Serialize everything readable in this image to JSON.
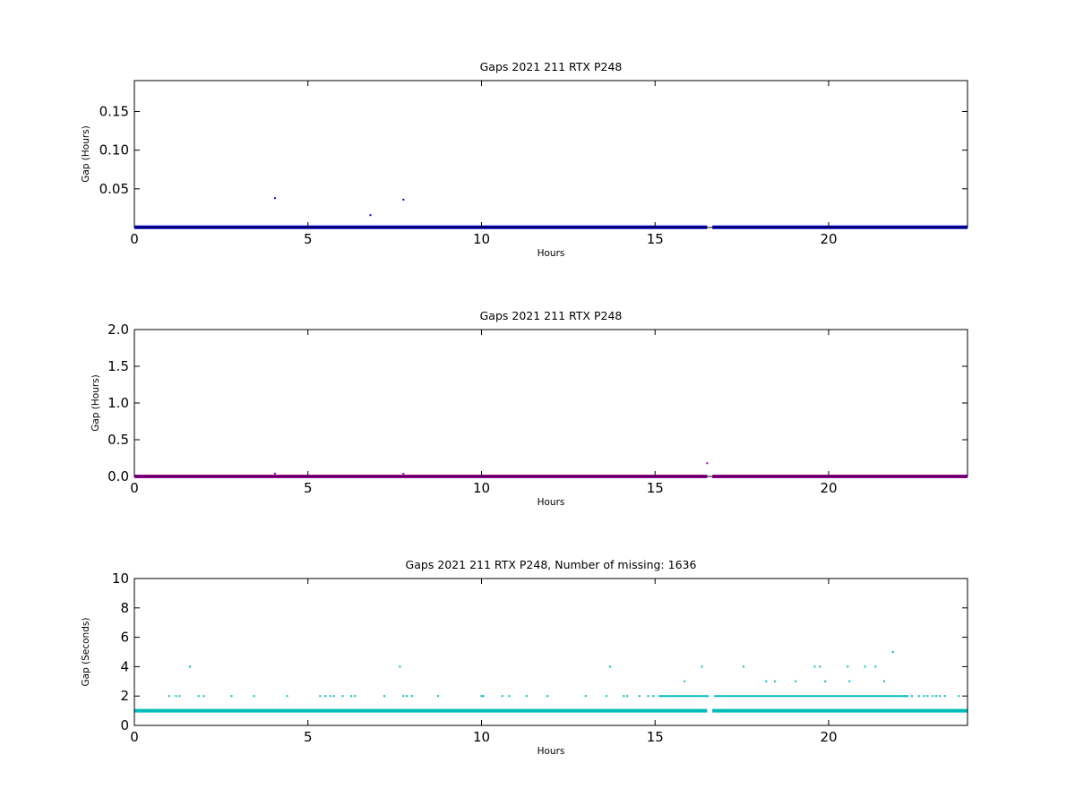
{
  "chart_data": [
    {
      "type": "scatter",
      "title": "Gaps 2021 211 RTX  P248",
      "xlabel": "Hours",
      "ylabel": "Gap (Hours)",
      "xlim": [
        0,
        24
      ],
      "ylim": [
        0,
        0.19
      ],
      "xticks": [
        0,
        5,
        10,
        15,
        20
      ],
      "yticks": [
        0.05,
        0.1,
        0.15
      ],
      "ytick_labels": [
        "0.05",
        "0.10",
        "0.15"
      ],
      "grid": false,
      "color": "#0000cc",
      "baseline": {
        "y": 0.0003,
        "x_ranges": [
          [
            0,
            16.5
          ],
          [
            16.65,
            24
          ]
        ]
      },
      "outliers": [
        {
          "x": 4.05,
          "y": 0.038
        },
        {
          "x": 6.8,
          "y": 0.016
        },
        {
          "x": 7.75,
          "y": 0.036
        }
      ]
    },
    {
      "type": "scatter",
      "title": "Gaps 2021 211 RTX  P248",
      "xlabel": "Hours",
      "ylabel": "Gap (Hours)",
      "xlim": [
        0,
        24
      ],
      "ylim": [
        0,
        2.0
      ],
      "xticks": [
        0,
        5,
        10,
        15,
        20
      ],
      "yticks": [
        0.0,
        0.5,
        1.0,
        1.5,
        2.0
      ],
      "ytick_labels": [
        "0.0",
        "0.5",
        "1.0",
        "1.5",
        "2.0"
      ],
      "grid": false,
      "color": "#aa00aa",
      "baseline": {
        "y": 0.0003,
        "x_ranges": [
          [
            0,
            16.5
          ],
          [
            16.65,
            24
          ]
        ]
      },
      "outliers": [
        {
          "x": 4.05,
          "y": 0.038
        },
        {
          "x": 7.75,
          "y": 0.036
        },
        {
          "x": 16.5,
          "y": 0.18
        }
      ]
    },
    {
      "type": "scatter",
      "title": "Gaps 2021 211 RTX  P248, Number of missing: 1636",
      "xlabel": "Hours",
      "ylabel": "Gap (Seconds)",
      "xlim": [
        0,
        24
      ],
      "ylim": [
        0,
        10
      ],
      "xticks": [
        0,
        5,
        10,
        15,
        20
      ],
      "yticks": [
        0,
        2,
        4,
        6,
        8,
        10
      ],
      "ytick_labels": [
        "0",
        "2",
        "4",
        "6",
        "8",
        "10"
      ],
      "grid": false,
      "color": "#00bbbb",
      "baseline": {
        "y": 1,
        "x_ranges": [
          [
            0,
            16.5
          ],
          [
            16.65,
            24
          ]
        ]
      },
      "outliers": [
        {
          "x": 1.0,
          "y": 2
        },
        {
          "x": 1.2,
          "y": 2
        },
        {
          "x": 1.3,
          "y": 2
        },
        {
          "x": 1.6,
          "y": 4
        },
        {
          "x": 1.85,
          "y": 2
        },
        {
          "x": 2.0,
          "y": 2
        },
        {
          "x": 2.8,
          "y": 2
        },
        {
          "x": 3.45,
          "y": 2
        },
        {
          "x": 4.4,
          "y": 2
        },
        {
          "x": 5.35,
          "y": 2
        },
        {
          "x": 5.5,
          "y": 2
        },
        {
          "x": 5.65,
          "y": 2
        },
        {
          "x": 5.75,
          "y": 2
        },
        {
          "x": 6.0,
          "y": 2
        },
        {
          "x": 6.25,
          "y": 2
        },
        {
          "x": 6.35,
          "y": 2
        },
        {
          "x": 7.2,
          "y": 2
        },
        {
          "x": 7.65,
          "y": 4
        },
        {
          "x": 7.75,
          "y": 2
        },
        {
          "x": 7.85,
          "y": 2
        },
        {
          "x": 8.0,
          "y": 2
        },
        {
          "x": 8.75,
          "y": 2
        },
        {
          "x": 10.0,
          "y": 2
        },
        {
          "x": 10.05,
          "y": 2
        },
        {
          "x": 10.6,
          "y": 2
        },
        {
          "x": 10.8,
          "y": 2
        },
        {
          "x": 11.3,
          "y": 2
        },
        {
          "x": 11.9,
          "y": 2
        },
        {
          "x": 13.0,
          "y": 2
        },
        {
          "x": 13.6,
          "y": 2
        },
        {
          "x": 13.7,
          "y": 4
        },
        {
          "x": 14.1,
          "y": 2
        },
        {
          "x": 14.2,
          "y": 2
        },
        {
          "x": 14.55,
          "y": 2
        },
        {
          "x": 14.8,
          "y": 2
        },
        {
          "x": 14.95,
          "y": 2
        },
        {
          "x": 15.85,
          "y": 3
        },
        {
          "x": 16.35,
          "y": 4
        },
        {
          "x": 17.55,
          "y": 4
        },
        {
          "x": 18.2,
          "y": 3
        },
        {
          "x": 18.45,
          "y": 3
        },
        {
          "x": 19.05,
          "y": 3
        },
        {
          "x": 19.6,
          "y": 4
        },
        {
          "x": 19.75,
          "y": 4
        },
        {
          "x": 19.9,
          "y": 3
        },
        {
          "x": 20.55,
          "y": 4
        },
        {
          "x": 20.6,
          "y": 3
        },
        {
          "x": 21.05,
          "y": 4
        },
        {
          "x": 21.35,
          "y": 4
        },
        {
          "x": 21.6,
          "y": 3
        },
        {
          "x": 21.85,
          "y": 5
        },
        {
          "x": 22.2,
          "y": 2
        },
        {
          "x": 22.4,
          "y": 2
        },
        {
          "x": 22.6,
          "y": 2
        },
        {
          "x": 22.75,
          "y": 2
        },
        {
          "x": 22.85,
          "y": 2
        },
        {
          "x": 23.0,
          "y": 2
        },
        {
          "x": 23.1,
          "y": 2
        },
        {
          "x": 23.2,
          "y": 2
        },
        {
          "x": 23.35,
          "y": 2
        },
        {
          "x": 23.75,
          "y": 2
        }
      ],
      "dense_segments": [
        {
          "y": 2,
          "x_ranges": [
            [
              15.1,
              16.55
            ],
            [
              16.7,
              22.3
            ]
          ]
        }
      ]
    }
  ]
}
